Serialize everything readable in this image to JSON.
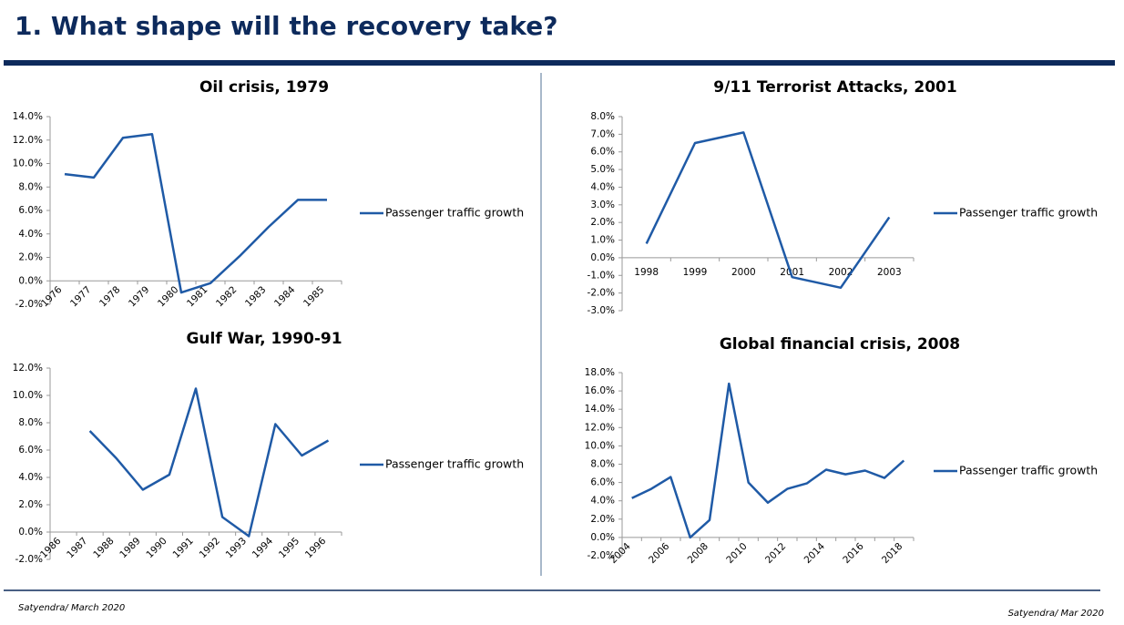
{
  "header": {
    "title": "1. What shape will the recovery take?"
  },
  "footer": {
    "left": "Satyendra/ March 2020",
    "right": "Satyendra/ Mar 2020"
  },
  "chart_data": [
    {
      "type": "line",
      "title": "Oil crisis, 1979",
      "categories": [
        "1976",
        "1977",
        "1978",
        "1979",
        "1980",
        "1981",
        "1982",
        "1983",
        "1984",
        "1985"
      ],
      "series": [
        {
          "name": "Passenger traffic growth",
          "color": "#1f5aa6",
          "values": [
            9.1,
            8.8,
            12.2,
            12.5,
            -1.0,
            -0.2,
            2.1,
            4.6,
            6.9,
            6.9
          ]
        }
      ],
      "ylim": [
        -2,
        14
      ],
      "yticks": [
        {
          "value": -2,
          "label": "-2.0%"
        },
        {
          "value": 0,
          "label": "0.0%"
        },
        {
          "value": 2,
          "label": "2.0%"
        },
        {
          "value": 4,
          "label": "4.0%"
        },
        {
          "value": 6,
          "label": "6.0%"
        },
        {
          "value": 8,
          "label": "8.0%"
        },
        {
          "value": 10,
          "label": "10.0%"
        },
        {
          "value": 12,
          "label": "12.0%"
        },
        {
          "value": 14,
          "label": "14.0%"
        }
      ],
      "legend": "right"
    },
    {
      "type": "line",
      "title": "9/11 Terrorist Attacks, 2001",
      "categories": [
        "1998",
        "1999",
        "2000",
        "2001",
        "2002",
        "2003"
      ],
      "series": [
        {
          "name": "Passenger traffic growth",
          "color": "#1f5aa6",
          "values": [
            0.8,
            6.5,
            7.1,
            -1.1,
            -1.7,
            2.3
          ]
        }
      ],
      "ylim": [
        -3,
        8
      ],
      "yticks": [
        {
          "value": -3,
          "label": "-3.0%"
        },
        {
          "value": -2,
          "label": "-2.0%"
        },
        {
          "value": -1,
          "label": "-1.0%"
        },
        {
          "value": 0,
          "label": "0.0%"
        },
        {
          "value": 1,
          "label": "1.0%"
        },
        {
          "value": 2,
          "label": "2.0%"
        },
        {
          "value": 3,
          "label": "3.0%"
        },
        {
          "value": 4,
          "label": "4.0%"
        },
        {
          "value": 5,
          "label": "5.0%"
        },
        {
          "value": 6,
          "label": "6.0%"
        },
        {
          "value": 7,
          "label": "7.0%"
        },
        {
          "value": 8,
          "label": "8.0%"
        }
      ],
      "legend": "right"
    },
    {
      "type": "line",
      "title": "Gulf War, 1990-91",
      "categories": [
        "1986",
        "1987",
        "1988",
        "1989",
        "1990",
        "1991",
        "1992",
        "1993",
        "1994",
        "1995",
        "1996"
      ],
      "series": [
        {
          "name": "Passenger traffic growth",
          "color": "#1f5aa6",
          "values": [
            null,
            7.4,
            5.4,
            3.1,
            4.2,
            10.5,
            1.1,
            -0.3,
            7.9,
            5.6,
            6.7
          ]
        }
      ],
      "ylim": [
        -2,
        12
      ],
      "yticks": [
        {
          "value": -2,
          "label": "-2.0%"
        },
        {
          "value": 0,
          "label": "0.0%"
        },
        {
          "value": 2,
          "label": "2.0%"
        },
        {
          "value": 4,
          "label": "4.0%"
        },
        {
          "value": 6,
          "label": "6.0%"
        },
        {
          "value": 8,
          "label": "8.0%"
        },
        {
          "value": 10,
          "label": "10.0%"
        },
        {
          "value": 12,
          "label": "12.0%"
        }
      ],
      "legend": "right"
    },
    {
      "type": "line",
      "title": "Global financial crisis, 2008",
      "categories": [
        "2004",
        null,
        "2006",
        null,
        "2008",
        null,
        "2010",
        null,
        "2012",
        null,
        "2014",
        null,
        "2016",
        null,
        "2018"
      ],
      "series": [
        {
          "name": "Passenger traffic growth",
          "color": "#1f5aa6",
          "values": [
            4.3,
            5.3,
            6.6,
            0.0,
            1.9,
            16.8,
            6.0,
            3.8,
            5.3,
            5.9,
            7.4,
            6.9,
            7.3,
            6.5,
            8.4
          ]
        }
      ],
      "ylim": [
        -2,
        18
      ],
      "yticks": [
        {
          "value": -2,
          "label": "-2.0%"
        },
        {
          "value": 0,
          "label": "0.0%"
        },
        {
          "value": 2,
          "label": "2.0%"
        },
        {
          "value": 4,
          "label": "4.0%"
        },
        {
          "value": 6,
          "label": "6.0%"
        },
        {
          "value": 8,
          "label": "8.0%"
        },
        {
          "value": 10,
          "label": "10.0%"
        },
        {
          "value": 12,
          "label": "12.0%"
        },
        {
          "value": 14,
          "label": "14.0%"
        },
        {
          "value": 16,
          "label": "16.0%"
        },
        {
          "value": 18,
          "label": "18.0%"
        }
      ],
      "legend": "right"
    }
  ]
}
